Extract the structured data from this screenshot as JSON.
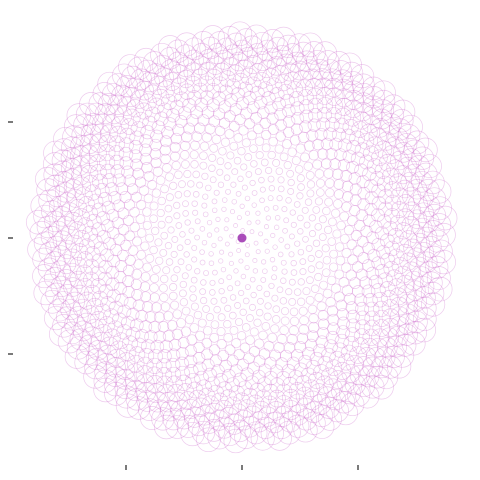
{
  "chart_data": {
    "type": "scatter",
    "title": "",
    "xlabel": "",
    "ylabel": "",
    "description_style": "phyllotaxis",
    "point_count": 1500,
    "golden_angle_deg": 137.508,
    "xlim": [
      -1.0,
      1.0
    ],
    "ylim": [
      -1.0,
      1.0
    ],
    "x_ticks": [
      -0.5,
      0.0,
      0.5
    ],
    "y_ticks": [
      -0.5,
      0.0,
      0.5
    ],
    "x_tick_labels": [
      "",
      "",
      ""
    ],
    "y_tick_labels": [
      "",
      "",
      ""
    ],
    "marker": "open-circle",
    "marker_size_min": 2,
    "marker_size_max": 12,
    "color": "#cc66cc",
    "center_color": "#9b2fae",
    "grid": false,
    "legend": "none"
  }
}
